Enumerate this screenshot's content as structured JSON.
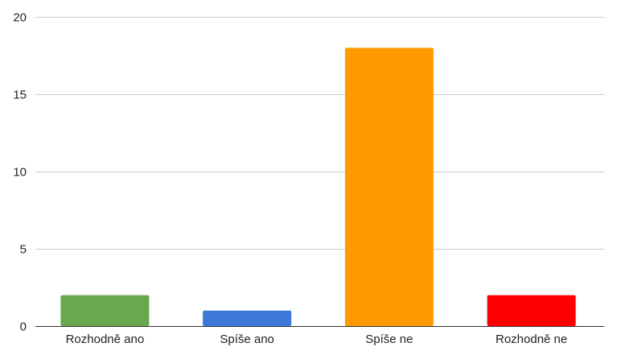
{
  "chart_data": {
    "type": "bar",
    "categories": [
      "Rozhodně ano",
      "Spíše ano",
      "Spíše ne",
      "Rozhodně ne"
    ],
    "values": [
      2,
      1,
      18,
      2
    ],
    "colors": [
      "#6aa84f",
      "#3c78d8",
      "#ff9900",
      "#ff0000"
    ],
    "ylim": [
      0,
      20
    ],
    "yticks": [
      0,
      5,
      10,
      15,
      20
    ],
    "ytick_labels": [
      "0",
      "5",
      "10",
      "15",
      "20"
    ],
    "grid": true,
    "legend": "none"
  }
}
